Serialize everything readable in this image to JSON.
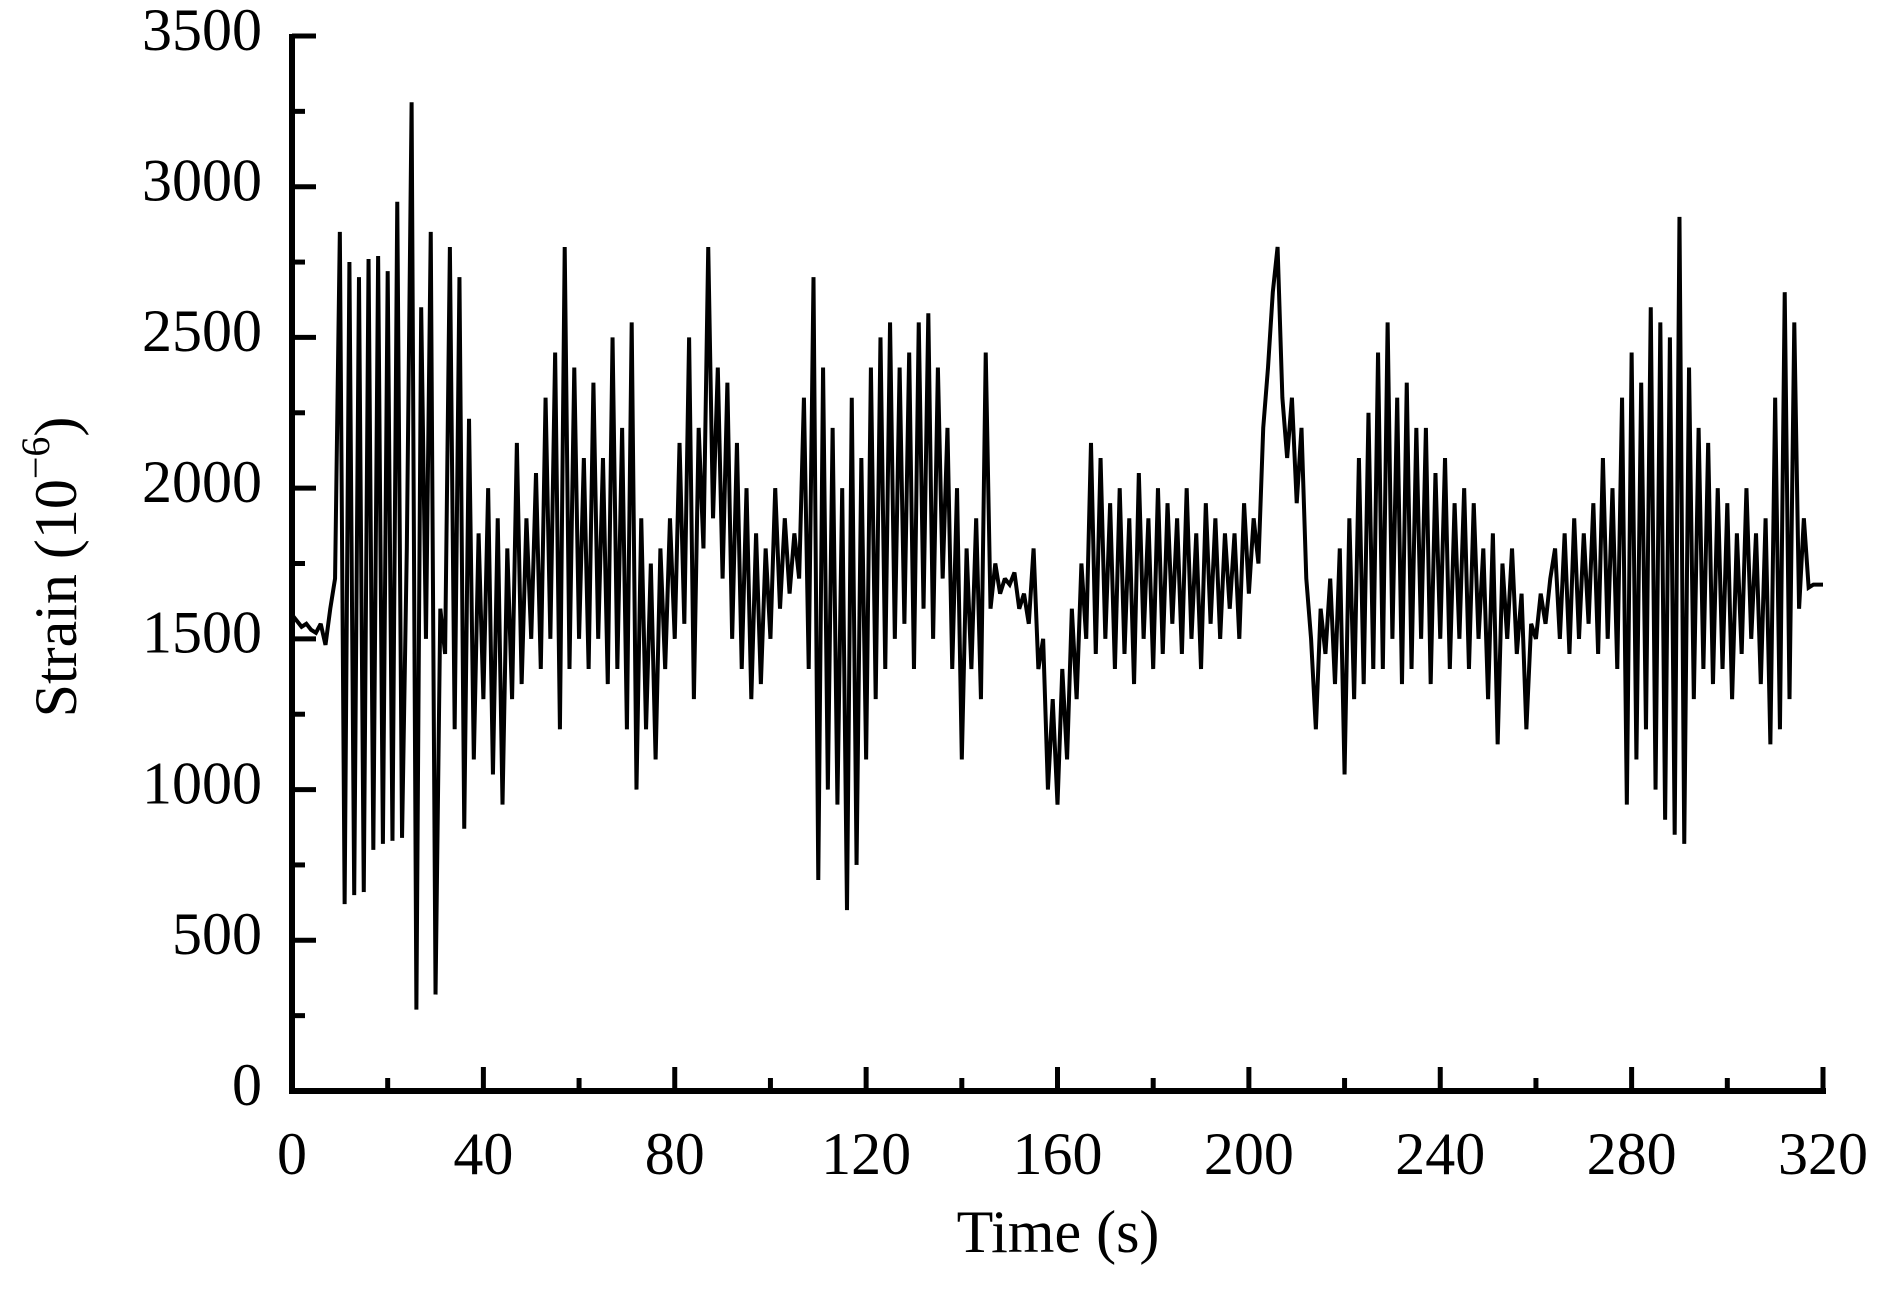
{
  "chart_data": {
    "type": "line",
    "xlabel": "Time (s)",
    "ylabel": [
      "Strain (10",
      "−6",
      ")"
    ],
    "xlim": [
      0,
      320
    ],
    "xticks": [
      0,
      40,
      80,
      120,
      160,
      200,
      240,
      280,
      320
    ],
    "xminorticks": [
      20,
      60,
      100,
      140,
      180,
      220,
      260,
      300
    ],
    "ylim": [
      0,
      3500
    ],
    "yticks": [
      0,
      500,
      1000,
      1500,
      2000,
      2500,
      3000,
      3500
    ],
    "yminorticks": [
      250,
      750,
      1250,
      1750,
      2250,
      2750,
      3250
    ],
    "color": "#000000",
    "x": [
      0,
      1,
      2,
      3,
      4,
      5,
      6,
      7,
      8,
      9,
      10,
      11,
      12,
      13,
      14,
      15,
      16,
      17,
      18,
      19,
      20,
      21,
      22,
      23,
      24,
      25,
      26,
      27,
      28,
      29,
      30,
      31,
      32,
      33,
      34,
      35,
      36,
      37,
      38,
      39,
      40,
      41,
      42,
      43,
      44,
      45,
      46,
      47,
      48,
      49,
      50,
      51,
      52,
      53,
      54,
      55,
      56,
      57,
      58,
      59,
      60,
      61,
      62,
      63,
      64,
      65,
      66,
      67,
      68,
      69,
      70,
      71,
      72,
      73,
      74,
      75,
      76,
      77,
      78,
      79,
      80,
      81,
      82,
      83,
      84,
      85,
      86,
      87,
      88,
      89,
      90,
      91,
      92,
      93,
      94,
      95,
      96,
      97,
      98,
      99,
      100,
      101,
      102,
      103,
      104,
      105,
      106,
      107,
      108,
      109,
      110,
      111,
      112,
      113,
      114,
      115,
      116,
      117,
      118,
      119,
      120,
      121,
      122,
      123,
      124,
      125,
      126,
      127,
      128,
      129,
      130,
      131,
      132,
      133,
      134,
      135,
      136,
      137,
      138,
      139,
      140,
      141,
      142,
      143,
      144,
      145,
      146,
      147,
      148,
      149,
      150,
      151,
      152,
      153,
      154,
      155,
      156,
      157,
      158,
      159,
      160,
      161,
      162,
      163,
      164,
      165,
      166,
      167,
      168,
      169,
      170,
      171,
      172,
      173,
      174,
      175,
      176,
      177,
      178,
      179,
      180,
      181,
      182,
      183,
      184,
      185,
      186,
      187,
      188,
      189,
      190,
      191,
      192,
      193,
      194,
      195,
      196,
      197,
      198,
      199,
      200,
      201,
      202,
      203,
      204,
      205,
      206,
      207,
      208,
      209,
      210,
      211,
      212,
      213,
      214,
      215,
      216,
      217,
      218,
      219,
      220,
      221,
      222,
      223,
      224,
      225,
      226,
      227,
      228,
      229,
      230,
      231,
      232,
      233,
      234,
      235,
      236,
      237,
      238,
      239,
      240,
      241,
      242,
      243,
      244,
      245,
      246,
      247,
      248,
      249,
      250,
      251,
      252,
      253,
      254,
      255,
      256,
      257,
      258,
      259,
      260,
      261,
      262,
      263,
      264,
      265,
      266,
      267,
      268,
      269,
      270,
      271,
      272,
      273,
      274,
      275,
      276,
      277,
      278,
      279,
      280,
      281,
      282,
      283,
      284,
      285,
      286,
      287,
      288,
      289,
      290,
      291,
      292,
      293,
      294,
      295,
      296,
      297,
      298,
      299,
      300,
      301,
      302,
      303,
      304,
      305,
      306,
      307,
      308,
      309,
      310,
      311,
      312,
      313,
      314,
      315,
      316,
      317,
      318,
      319,
      320
    ],
    "values": [
      1580,
      1560,
      1540,
      1550,
      1530,
      1520,
      1550,
      1480,
      1600,
      1700,
      2850,
      620,
      2750,
      650,
      2700,
      660,
      2760,
      800,
      2770,
      820,
      2720,
      830,
      2950,
      840,
      1800,
      3280,
      270,
      2600,
      1500,
      2850,
      320,
      1600,
      1450,
      2800,
      1200,
      2700,
      870,
      2230,
      1100,
      1850,
      1300,
      2000,
      1050,
      1900,
      950,
      1800,
      1300,
      2150,
      1350,
      1900,
      1500,
      2050,
      1400,
      2300,
      1500,
      2450,
      1200,
      2800,
      1400,
      2400,
      1500,
      2100,
      1400,
      2350,
      1500,
      2100,
      1350,
      2500,
      1400,
      2200,
      1200,
      2550,
      1000,
      1900,
      1200,
      1750,
      1100,
      1800,
      1400,
      1900,
      1500,
      2150,
      1550,
      2500,
      1300,
      2200,
      1800,
      2800,
      1900,
      2400,
      1700,
      2350,
      1500,
      2150,
      1400,
      2000,
      1300,
      1850,
      1350,
      1800,
      1500,
      2000,
      1600,
      1900,
      1650,
      1850,
      1700,
      2300,
      1400,
      2700,
      700,
      2400,
      1000,
      2200,
      950,
      2000,
      600,
      2300,
      750,
      2100,
      1100,
      2400,
      1300,
      2500,
      1400,
      2550,
      1500,
      2400,
      1550,
      2450,
      1400,
      2550,
      1600,
      2580,
      1500,
      2400,
      1700,
      2200,
      1400,
      2000,
      1100,
      1800,
      1400,
      1900,
      1300,
      2450,
      1600,
      1750,
      1650,
      1700,
      1680,
      1720,
      1600,
      1650,
      1550,
      1800,
      1400,
      1500,
      1000,
      1300,
      950,
      1400,
      1100,
      1600,
      1300,
      1750,
      1500,
      2150,
      1450,
      2100,
      1500,
      1950,
      1400,
      2000,
      1450,
      1900,
      1350,
      2050,
      1500,
      1900,
      1400,
      2000,
      1450,
      1950,
      1550,
      1900,
      1450,
      2000,
      1500,
      1850,
      1400,
      1950,
      1550,
      1900,
      1500,
      1850,
      1600,
      1850,
      1500,
      1950,
      1650,
      1900,
      1750,
      2200,
      2400,
      2650,
      2800,
      2300,
      2100,
      2300,
      1950,
      2200,
      1700,
      1500,
      1200,
      1600,
      1450,
      1700,
      1350,
      1800,
      1050,
      1900,
      1300,
      2100,
      1350,
      2250,
      1400,
      2450,
      1400,
      2550,
      1500,
      2300,
      1350,
      2350,
      1400,
      2200,
      1500,
      2200,
      1350,
      2050,
      1500,
      2100,
      1400,
      1950,
      1500,
      2000,
      1400,
      1950,
      1500,
      1800,
      1300,
      1850,
      1150,
      1750,
      1500,
      1800,
      1450,
      1650,
      1200,
      1550,
      1500,
      1650,
      1550,
      1700,
      1800,
      1500,
      1850,
      1450,
      1900,
      1500,
      1850,
      1550,
      1950,
      1450,
      2100,
      1500,
      2000,
      1400,
      2300,
      950,
      2450,
      1100,
      2350,
      1200,
      2600,
      1000,
      2550,
      900,
      2500,
      850,
      2900,
      820,
      2400,
      1300,
      2200,
      1400,
      2150,
      1350,
      2000,
      1400,
      1950,
      1300,
      1850,
      1450,
      2000,
      1500,
      1850,
      1350,
      1900,
      1150,
      2300,
      1200,
      2650,
      1300,
      2550,
      1600,
      1900,
      1670,
      1680,
      1680,
      1680
    ]
  }
}
